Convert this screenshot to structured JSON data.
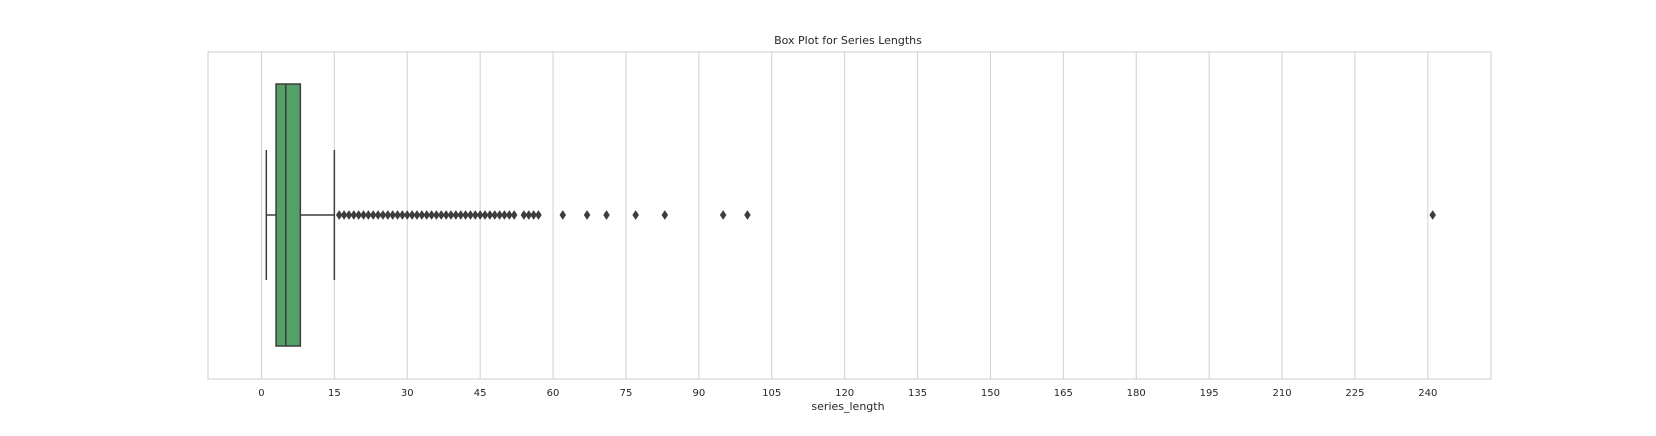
{
  "chart_data": {
    "type": "box",
    "orientation": "horizontal",
    "title": "Box Plot for Series Lengths",
    "xlabel": "series_length",
    "ylabel": "",
    "xlim": [
      -11,
      253
    ],
    "xticks": [
      0,
      15,
      30,
      45,
      60,
      75,
      90,
      105,
      120,
      135,
      150,
      165,
      180,
      195,
      210,
      225,
      240
    ],
    "grid": true,
    "colors": {
      "box_fill": "#55a068",
      "box_edge": "#3d3d3d",
      "grid": "#d0d0d0",
      "frame": "#cccccc",
      "outlier": "#3d3d3d"
    },
    "box": {
      "whisker_low": 1,
      "q1": 3,
      "median": 5,
      "q3": 8,
      "whisker_high": 15
    },
    "outliers": [
      16,
      17,
      18,
      19,
      20,
      21,
      22,
      23,
      24,
      25,
      26,
      27,
      28,
      29,
      30,
      31,
      32,
      33,
      34,
      35,
      36,
      37,
      38,
      39,
      40,
      41,
      42,
      43,
      44,
      45,
      46,
      47,
      48,
      49,
      50,
      51,
      52,
      54,
      55,
      56,
      57,
      62,
      67,
      71,
      77,
      83,
      95,
      100,
      241
    ]
  }
}
